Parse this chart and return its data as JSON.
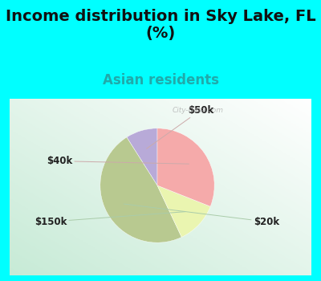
{
  "title": "Income distribution in Sky Lake, FL\n(%)",
  "subtitle": "Asian residents",
  "subtitle_color": "#20AAAA",
  "background_color": "#00FFFF",
  "slices": [
    {
      "label": "$50k",
      "value": 9,
      "color": "#b8aad8"
    },
    {
      "label": "$20k",
      "value": 48,
      "color": "#b8c990"
    },
    {
      "label": "$150k",
      "value": 12,
      "color": "#eaf5b0"
    },
    {
      "label": "$40k",
      "value": 31,
      "color": "#f5aaaa"
    }
  ],
  "watermark": "City-Data.com",
  "title_fontsize": 14,
  "subtitle_fontsize": 12,
  "startangle": 90
}
